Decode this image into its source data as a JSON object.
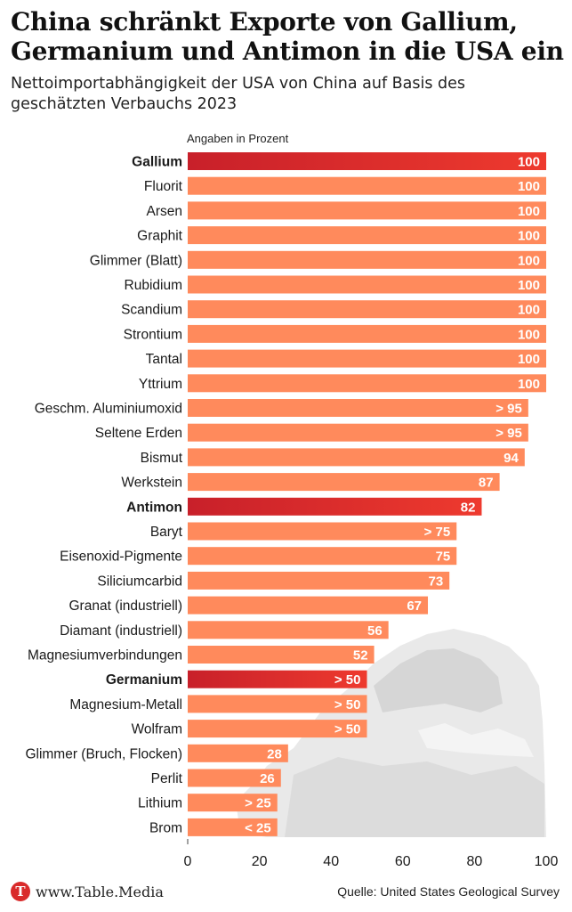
{
  "header": {
    "title": "China schränkt Exporte von Gallium, Germanium und Antimon in die USA ein",
    "subtitle": "Nettoimportabhängigkeit der USA von China auf Basis des geschätzten Verbauchs 2023",
    "unit_note": "Angaben in Prozent"
  },
  "footer": {
    "site": "www.Table.Media",
    "logo_letter": "T",
    "source": "Quelle: United States Geological Survey"
  },
  "colors": {
    "bar": "#ff8a5c",
    "highlight_start": "#c8202a",
    "highlight_end": "#ee3a2e"
  },
  "chart_data": {
    "type": "bar",
    "orientation": "horizontal",
    "categories": [
      "Gallium",
      "Fluorit",
      "Arsen",
      "Graphit",
      "Glimmer (Blatt)",
      "Rubidium",
      "Scandium",
      "Strontium",
      "Tantal",
      "Yttrium",
      "Geschm. Aluminiumoxid",
      "Seltene Erden",
      "Bismut",
      "Werkstein",
      "Antimon",
      "Baryt",
      "Eisenoxid-Pigmente",
      "Siliciumcarbid",
      "Granat (industriell)",
      "Diamant (industriell)",
      "Magnesiumverbindungen",
      "Germanium",
      "Magnesium-Metall",
      "Wolfram",
      "Glimmer (Bruch, Flocken)",
      "Perlit",
      "Lithium",
      "Brom"
    ],
    "values": [
      100,
      100,
      100,
      100,
      100,
      100,
      100,
      100,
      100,
      100,
      95,
      95,
      94,
      87,
      82,
      75,
      75,
      73,
      67,
      56,
      52,
      50,
      50,
      50,
      28,
      26,
      25,
      25
    ],
    "labels": [
      "100",
      "100",
      "100",
      "100",
      "100",
      "100",
      "100",
      "100",
      "100",
      "100",
      "> 95",
      "> 95",
      "94",
      "87",
      "82",
      "> 75",
      "75",
      "73",
      "67",
      "56",
      "52",
      "> 50",
      "> 50",
      "> 50",
      "28",
      "26",
      "> 25",
      "< 25"
    ],
    "highlighted": [
      "Gallium",
      "Antimon",
      "Germanium"
    ],
    "xlim": [
      0,
      100
    ],
    "xticks": [
      0,
      20,
      40,
      60,
      80,
      100
    ],
    "grid": false,
    "legend": "none"
  }
}
